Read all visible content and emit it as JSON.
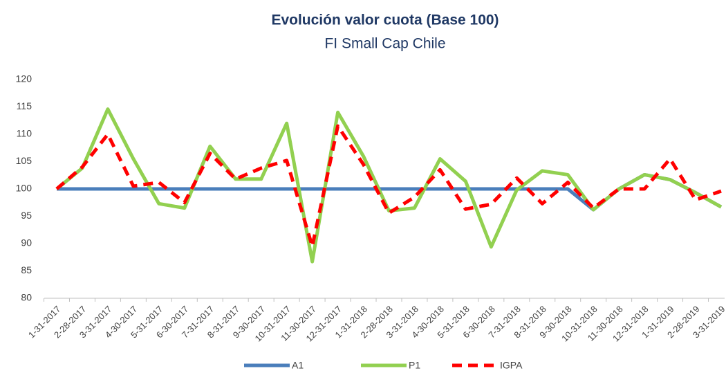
{
  "chart_data": {
    "type": "line",
    "title": "Evolución valor cuota (Base 100)",
    "subtitle": "FI Small Cap Chile",
    "categories": [
      "1-31-2017",
      "2-28-2017",
      "3-31-2017",
      "4-30-2017",
      "5-31-2017",
      "6-30-2017",
      "7-31-2017",
      "8-31-2017",
      "9-30-2017",
      "10-31-2017",
      "11-30-2017",
      "12-31-2017",
      "1-31-2018",
      "2-28-2018",
      "3-31-2018",
      "4-30-2018",
      "5-31-2018",
      "6-30-2018",
      "7-31-2018",
      "8-31-2018",
      "9-30-2018",
      "10-31-2018",
      "11-30-2018",
      "12-31-2018",
      "1-31-2019",
      "2-28-2019",
      "3-31-2019"
    ],
    "series": [
      {
        "name": "A1",
        "color": "#4a7ebb",
        "dashed": false,
        "values": [
          100,
          100,
          100,
          100,
          100,
          100,
          100,
          100,
          100,
          100,
          100,
          100,
          100,
          100,
          100,
          100,
          100,
          100,
          100,
          100,
          100,
          96.2,
          100,
          102.6,
          101.7,
          99.3,
          96.7
        ]
      },
      {
        "name": "P1",
        "color": "#92d050",
        "dashed": false,
        "values": [
          100,
          103.8,
          114.6,
          105.5,
          97.3,
          96.5,
          107.8,
          101.8,
          101.8,
          112,
          86.7,
          114,
          106,
          96,
          96.5,
          105.5,
          101.4,
          89.4,
          99.8,
          103.3,
          102.6,
          96.2,
          100,
          102.6,
          101.7,
          99.3,
          96.7
        ]
      },
      {
        "name": "IGPA",
        "color": "#ff0000",
        "dashed": true,
        "values": [
          100,
          104,
          110,
          100.5,
          101.2,
          97.5,
          106.5,
          101.8,
          103.8,
          105.2,
          89.5,
          111.5,
          104.5,
          95.6,
          98.5,
          103.5,
          96.3,
          97.2,
          102,
          97.3,
          101.2,
          96.5,
          100,
          100,
          105.5,
          98,
          99.6
        ]
      }
    ],
    "ylim": [
      80,
      120
    ],
    "yticks": [
      80,
      85,
      90,
      95,
      100,
      105,
      110,
      115,
      120
    ],
    "grid": false,
    "legend": "bottom"
  }
}
